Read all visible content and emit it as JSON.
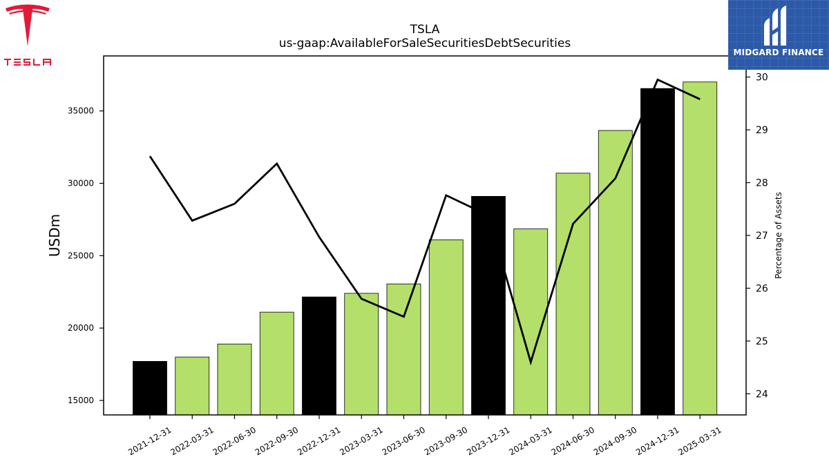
{
  "brand": {
    "left_logo_text": "TESLA",
    "left_logo_color": "#e31937",
    "right_logo_text": "MIDGARD FINANCE",
    "right_logo_bg": "#2c5aa8"
  },
  "chart_data": {
    "type": "bar",
    "title": "TSLA",
    "subtitle": "us-gaap:AvailableForSaleSecuritiesDebtSecurities",
    "categories": [
      "2021-12-31",
      "2022-03-31",
      "2022-06-30",
      "2022-09-30",
      "2022-12-31",
      "2023-03-31",
      "2023-06-30",
      "2023-09-30",
      "2023-12-31",
      "2024-03-31",
      "2024-06-30",
      "2024-09-30",
      "2024-12-31",
      "2025-03-31"
    ],
    "series": [
      {
        "type": "bar",
        "axis": "left",
        "values": [
          17700,
          18000,
          18900,
          21100,
          22150,
          22400,
          23050,
          26100,
          29100,
          26850,
          30700,
          33650,
          36550,
          37000
        ],
        "colors": [
          "#000000",
          "#b3df6a",
          "#b3df6a",
          "#b3df6a",
          "#000000",
          "#b3df6a",
          "#b3df6a",
          "#b3df6a",
          "#000000",
          "#b3df6a",
          "#b3df6a",
          "#b3df6a",
          "#000000",
          "#b3df6a"
        ]
      },
      {
        "type": "line",
        "axis": "right",
        "values": [
          28.5,
          27.28,
          27.6,
          28.36,
          26.97,
          25.8,
          25.46,
          27.76,
          27.38,
          24.6,
          27.22,
          28.08,
          29.95,
          29.58
        ],
        "color": "#000000"
      }
    ],
    "ylabel": "USDm",
    "ylabel_right": "Percentage of Assets",
    "ylim": [
      14000,
      38800
    ],
    "ylim_right": [
      23.6,
      30.4
    ],
    "yticks": [
      15000,
      20000,
      25000,
      30000,
      35000
    ],
    "yticks_right": [
      24,
      25,
      26,
      27,
      28,
      29,
      30
    ],
    "grid": false,
    "legend": "none"
  }
}
